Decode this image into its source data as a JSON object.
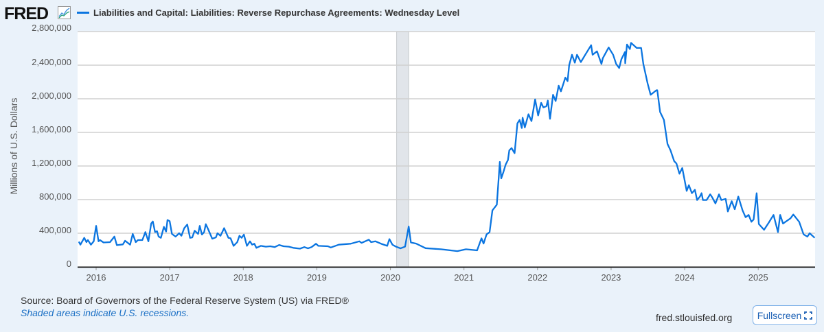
{
  "header": {
    "logo_text": "FRED",
    "logo_icon": "line-chart-icon"
  },
  "footer": {
    "source": "Source: Board of Governors of the Federal Reserve System (US) via FRED®",
    "recession_note": "Shaded areas indicate U.S. recessions.",
    "site": "fred.stlouisfed.org",
    "fullscreen_label": "Fullscreen",
    "fullscreen_icon": "expand-icon"
  },
  "chart_data": {
    "type": "line",
    "title": "",
    "legend_position": "top-left",
    "xlabel": "",
    "ylabel": "Millions of U.S. Dollars",
    "xlim": [
      "2015-10-01",
      "2025-10-10"
    ],
    "ylim": [
      0,
      2800000
    ],
    "grid": true,
    "x_ticks": [
      "2016",
      "2017",
      "2018",
      "2019",
      "2020",
      "2021",
      "2022",
      "2023",
      "2024",
      "2025"
    ],
    "y_ticks": [
      {
        "value": 0,
        "label": "0"
      },
      {
        "value": 400000,
        "label": "400,000"
      },
      {
        "value": 800000,
        "label": "800,000"
      },
      {
        "value": 1200000,
        "label": "1,200,000"
      },
      {
        "value": 1600000,
        "label": "1,600,000"
      },
      {
        "value": 2000000,
        "label": "2,000,000"
      },
      {
        "value": 2400000,
        "label": "2,400,000"
      },
      {
        "value": 2800000,
        "label": "2,800,000"
      }
    ],
    "recessions": [
      {
        "start": "2020-02-01",
        "end": "2020-04-01"
      }
    ],
    "series": [
      {
        "name": "Liabilities and Capital: Liabilities: Reverse Repurchase Agreements: Wednesday Level",
        "color": "#0b75e0",
        "points": [
          [
            "2015-10-07",
            300000
          ],
          [
            "2015-10-15",
            264000
          ],
          [
            "2015-11-03",
            345000
          ],
          [
            "2015-11-14",
            294000
          ],
          [
            "2015-11-21",
            318000
          ],
          [
            "2015-12-06",
            264000
          ],
          [
            "2015-12-20",
            304000
          ],
          [
            "2016-01-01",
            487000
          ],
          [
            "2016-01-13",
            304000
          ],
          [
            "2016-01-20",
            318000
          ],
          [
            "2016-02-07",
            290000
          ],
          [
            "2016-03-10",
            294000
          ],
          [
            "2016-04-01",
            360000
          ],
          [
            "2016-04-13",
            258000
          ],
          [
            "2016-05-13",
            267000
          ],
          [
            "2016-05-24",
            310000
          ],
          [
            "2016-06-18",
            264000
          ],
          [
            "2016-07-01",
            392000
          ],
          [
            "2016-07-16",
            294000
          ],
          [
            "2016-07-27",
            318000
          ],
          [
            "2016-08-18",
            318000
          ],
          [
            "2016-09-02",
            414000
          ],
          [
            "2016-09-17",
            304000
          ],
          [
            "2016-10-01",
            516000
          ],
          [
            "2016-10-09",
            540000
          ],
          [
            "2016-10-20",
            414000
          ],
          [
            "2016-10-30",
            424000
          ],
          [
            "2016-11-07",
            360000
          ],
          [
            "2016-11-18",
            345000
          ],
          [
            "2016-12-03",
            476000
          ],
          [
            "2016-12-14",
            420000
          ],
          [
            "2016-12-21",
            557000
          ],
          [
            "2017-01-01",
            544000
          ],
          [
            "2017-01-12",
            392000
          ],
          [
            "2017-01-30",
            360000
          ],
          [
            "2017-02-17",
            400000
          ],
          [
            "2017-02-28",
            370000
          ],
          [
            "2017-03-14",
            460000
          ],
          [
            "2017-03-29",
            503000
          ],
          [
            "2017-04-12",
            345000
          ],
          [
            "2017-04-23",
            350000
          ],
          [
            "2017-05-05",
            430000
          ],
          [
            "2017-05-22",
            392000
          ],
          [
            "2017-05-30",
            487000
          ],
          [
            "2017-06-10",
            384000
          ],
          [
            "2017-06-21",
            414000
          ],
          [
            "2017-06-29",
            508000
          ],
          [
            "2017-07-09",
            457000
          ],
          [
            "2017-07-31",
            335000
          ],
          [
            "2017-08-18",
            350000
          ],
          [
            "2017-08-26",
            400000
          ],
          [
            "2017-09-10",
            370000
          ],
          [
            "2017-09-28",
            460000
          ],
          [
            "2017-10-19",
            345000
          ],
          [
            "2017-10-30",
            340000
          ],
          [
            "2017-11-14",
            250000
          ],
          [
            "2017-12-02",
            294000
          ],
          [
            "2017-12-13",
            370000
          ],
          [
            "2017-12-24",
            345000
          ],
          [
            "2018-01-04",
            384000
          ],
          [
            "2018-01-19",
            250000
          ],
          [
            "2018-02-03",
            304000
          ],
          [
            "2018-02-14",
            264000
          ],
          [
            "2018-02-25",
            275000
          ],
          [
            "2018-03-07",
            226000
          ],
          [
            "2018-03-29",
            250000
          ],
          [
            "2018-04-23",
            240000
          ],
          [
            "2018-05-15",
            245000
          ],
          [
            "2018-06-06",
            235000
          ],
          [
            "2018-06-28",
            260000
          ],
          [
            "2018-07-20",
            245000
          ],
          [
            "2018-08-15",
            240000
          ],
          [
            "2018-09-06",
            226000
          ],
          [
            "2018-10-09",
            216000
          ],
          [
            "2018-10-31",
            235000
          ],
          [
            "2018-11-18",
            220000
          ],
          [
            "2018-12-06",
            235000
          ],
          [
            "2018-12-28",
            275000
          ],
          [
            "2019-01-08",
            250000
          ],
          [
            "2019-02-25",
            245000
          ],
          [
            "2019-03-11",
            230000
          ],
          [
            "2019-04-20",
            264000
          ],
          [
            "2019-06-18",
            275000
          ],
          [
            "2019-07-31",
            304000
          ],
          [
            "2019-08-11",
            285000
          ],
          [
            "2019-09-16",
            323000
          ],
          [
            "2019-09-27",
            294000
          ],
          [
            "2019-10-19",
            304000
          ],
          [
            "2019-11-21",
            270000
          ],
          [
            "2019-12-16",
            250000
          ],
          [
            "2019-12-27",
            330000
          ],
          [
            "2020-01-11",
            264000
          ],
          [
            "2020-01-29",
            240000
          ],
          [
            "2020-02-20",
            220000
          ],
          [
            "2020-03-14",
            240000
          ],
          [
            "2020-04-01",
            480000
          ],
          [
            "2020-04-12",
            290000
          ],
          [
            "2020-05-08",
            277000
          ],
          [
            "2020-06-24",
            222000
          ],
          [
            "2020-09-09",
            209000
          ],
          [
            "2020-11-29",
            187000
          ],
          [
            "2021-01-11",
            209000
          ],
          [
            "2021-03-07",
            196000
          ],
          [
            "2021-03-29",
            340000
          ],
          [
            "2021-04-08",
            277000
          ],
          [
            "2021-04-23",
            386000
          ],
          [
            "2021-05-08",
            413000
          ],
          [
            "2021-05-22",
            672000
          ],
          [
            "2021-06-13",
            740000
          ],
          [
            "2021-06-28",
            1249000
          ],
          [
            "2021-07-05",
            1053000
          ],
          [
            "2021-07-16",
            1130000
          ],
          [
            "2021-07-27",
            1217000
          ],
          [
            "2021-08-07",
            1271000
          ],
          [
            "2021-08-14",
            1386000
          ],
          [
            "2021-08-25",
            1413000
          ],
          [
            "2021-09-09",
            1353000
          ],
          [
            "2021-09-23",
            1707000
          ],
          [
            "2021-10-04",
            1748000
          ],
          [
            "2021-10-15",
            1652000
          ],
          [
            "2021-10-19",
            1775000
          ],
          [
            "2021-10-30",
            1659000
          ],
          [
            "2021-11-17",
            1816000
          ],
          [
            "2021-12-02",
            1734000
          ],
          [
            "2021-12-20",
            1993000
          ],
          [
            "2022-01-04",
            1802000
          ],
          [
            "2022-01-19",
            1952000
          ],
          [
            "2022-01-30",
            1898000
          ],
          [
            "2022-02-14",
            1911000
          ],
          [
            "2022-02-21",
            1979000
          ],
          [
            "2022-03-04",
            1762000
          ],
          [
            "2022-03-19",
            2047000
          ],
          [
            "2022-04-01",
            1973000
          ],
          [
            "2022-04-16",
            2156000
          ],
          [
            "2022-04-27",
            2088000
          ],
          [
            "2022-05-19",
            2252000
          ],
          [
            "2022-05-30",
            2211000
          ],
          [
            "2022-06-07",
            2401000
          ],
          [
            "2022-06-21",
            2524000
          ],
          [
            "2022-07-05",
            2429000
          ],
          [
            "2022-07-16",
            2524000
          ],
          [
            "2022-08-04",
            2437000
          ],
          [
            "2022-08-29",
            2537000
          ],
          [
            "2022-09-24",
            2638000
          ],
          [
            "2022-10-01",
            2524000
          ],
          [
            "2022-10-23",
            2565000
          ],
          [
            "2022-11-14",
            2415000
          ],
          [
            "2022-11-21",
            2483000
          ],
          [
            "2022-12-20",
            2611000
          ],
          [
            "2023-01-11",
            2524000
          ],
          [
            "2023-01-26",
            2415000
          ],
          [
            "2023-02-10",
            2366000
          ],
          [
            "2023-02-21",
            2470000
          ],
          [
            "2023-03-11",
            2557000
          ],
          [
            "2023-03-12",
            2423000
          ],
          [
            "2023-03-21",
            2646000
          ],
          [
            "2023-04-04",
            2592000
          ],
          [
            "2023-04-10",
            2665000
          ],
          [
            "2023-05-08",
            2605000
          ],
          [
            "2023-05-30",
            2605000
          ],
          [
            "2023-06-10",
            2415000
          ],
          [
            "2023-07-01",
            2184000
          ],
          [
            "2023-07-16",
            2047000
          ],
          [
            "2023-08-14",
            2102000
          ],
          [
            "2023-08-18",
            2102000
          ],
          [
            "2023-09-01",
            1843000
          ],
          [
            "2023-09-20",
            1748000
          ],
          [
            "2023-10-08",
            1462000
          ],
          [
            "2023-10-23",
            1386000
          ],
          [
            "2023-11-10",
            1258000
          ],
          [
            "2023-11-21",
            1230000
          ],
          [
            "2023-12-06",
            1108000
          ],
          [
            "2023-12-20",
            1176000
          ],
          [
            "2024-01-11",
            904000
          ],
          [
            "2024-01-22",
            972000
          ],
          [
            "2024-02-06",
            877000
          ],
          [
            "2024-02-21",
            917000
          ],
          [
            "2024-03-03",
            795000
          ],
          [
            "2024-03-17",
            836000
          ],
          [
            "2024-03-25",
            877000
          ],
          [
            "2024-04-01",
            795000
          ],
          [
            "2024-04-19",
            795000
          ],
          [
            "2024-05-07",
            863000
          ],
          [
            "2024-05-18",
            822000
          ],
          [
            "2024-06-02",
            754000
          ],
          [
            "2024-06-20",
            863000
          ],
          [
            "2024-07-01",
            795000
          ],
          [
            "2024-07-23",
            808000
          ],
          [
            "2024-08-03",
            659000
          ],
          [
            "2024-08-22",
            781000
          ],
          [
            "2024-09-06",
            686000
          ],
          [
            "2024-09-24",
            836000
          ],
          [
            "2024-10-15",
            672000
          ],
          [
            "2024-10-30",
            590000
          ],
          [
            "2024-11-14",
            618000
          ],
          [
            "2024-11-28",
            536000
          ],
          [
            "2024-12-09",
            563000
          ],
          [
            "2024-12-24",
            877000
          ],
          [
            "2025-01-04",
            509000
          ],
          [
            "2025-01-30",
            441000
          ],
          [
            "2025-02-21",
            522000
          ],
          [
            "2025-03-18",
            618000
          ],
          [
            "2025-04-09",
            413000
          ],
          [
            "2025-04-20",
            618000
          ],
          [
            "2025-05-04",
            515000
          ],
          [
            "2025-06-10",
            577000
          ],
          [
            "2025-06-24",
            623000
          ],
          [
            "2025-07-23",
            536000
          ],
          [
            "2025-08-14",
            386000
          ],
          [
            "2025-09-02",
            359000
          ],
          [
            "2025-09-13",
            400000
          ],
          [
            "2025-10-08",
            345000
          ]
        ]
      }
    ]
  }
}
